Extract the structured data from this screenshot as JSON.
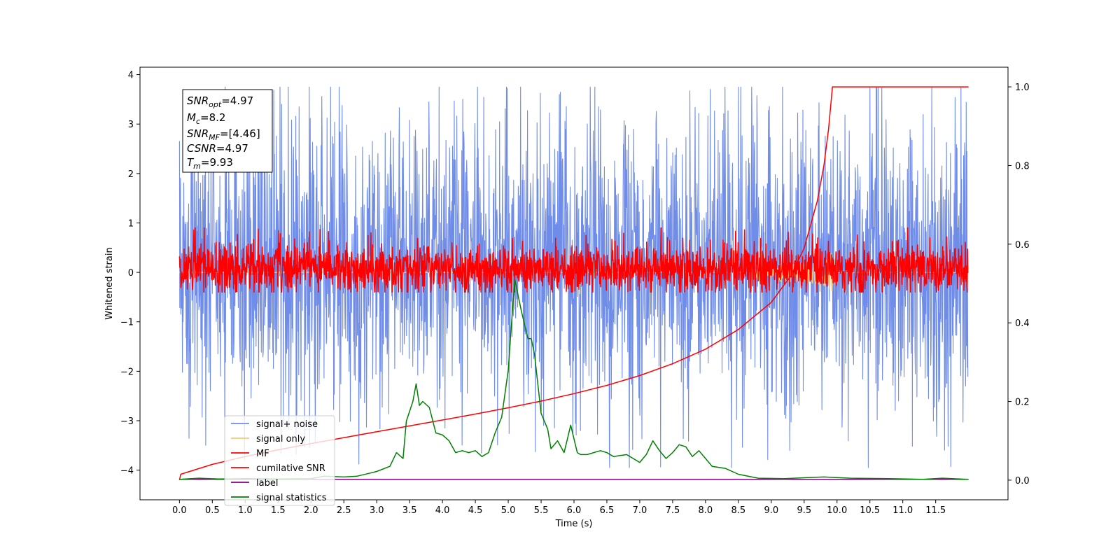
{
  "chart_data": {
    "type": "line",
    "xlabel": "Time (s)",
    "ylabel": "Whitened strain",
    "xlim": [
      -0.6,
      12.6
    ],
    "ylim": [
      -4.6,
      4.15
    ],
    "ylim_right": [
      -0.05,
      1.05
    ],
    "x_ticks": [
      "0.0",
      "0.5",
      "1.0",
      "1.5",
      "2.0",
      "2.5",
      "3.0",
      "3.5",
      "4.0",
      "4.5",
      "5.0",
      "5.5",
      "6.0",
      "6.5",
      "7.0",
      "7.5",
      "8.0",
      "8.5",
      "9.0",
      "9.5",
      "10.0",
      "10.5",
      "11.0",
      "11.5"
    ],
    "y_ticks": [
      "4",
      "3",
      "2",
      "1",
      "0",
      "−1",
      "−2",
      "−3",
      "−4"
    ],
    "y_ticks_right": [
      "1.0",
      "0.8",
      "0.6",
      "0.4",
      "0.2",
      "0.0"
    ],
    "grid": false,
    "legend_position": "lower-left",
    "annotation": {
      "line1_main": "SNR",
      "line1_sub": "opt",
      "line1_rest": "=4.97",
      "line2_main": "M",
      "line2_sub": "c",
      "line2_rest": "=8.2",
      "line3_main": "SNR",
      "line3_sub": "MF",
      "line3_rest": "=[4.46]",
      "line4_main": "CSNR",
      "line4_rest": "=4.97",
      "line5_main": "T",
      "line5_sub": "m",
      "line5_rest": "=9.93"
    },
    "series": [
      {
        "name": "signal+ noise",
        "color": "#6f8ce8",
        "axis": "left",
        "kind": "noise",
        "x_range": [
          0,
          11.99
        ],
        "typical_range": [
          -1.8,
          2.3
        ],
        "extremes": [
          -3.95,
          3.75
        ]
      },
      {
        "name": "signal only",
        "color": "#f5c878",
        "axis": "left",
        "kind": "chirp",
        "x_range": [
          0,
          11.99
        ],
        "merger_time": 9.93,
        "peak_amplitude": 0.45
      },
      {
        "name": "MF",
        "color": "#ff0000",
        "axis": "left",
        "kind": "noise",
        "x_range": [
          0,
          11.99
        ],
        "typical_range": [
          -0.35,
          0.5
        ],
        "extremes": [
          -0.4,
          0.9
        ]
      },
      {
        "name": "cumilative SNR",
        "color": "#ff0000",
        "axis": "right",
        "x": [
          0.0,
          0.02,
          0.5,
          1.0,
          1.5,
          2.0,
          2.5,
          3.0,
          3.5,
          4.0,
          4.5,
          5.0,
          5.5,
          6.0,
          6.5,
          7.0,
          7.5,
          8.0,
          8.5,
          9.0,
          9.3,
          9.5,
          9.7,
          9.8,
          9.87,
          9.93,
          12.0
        ],
        "y": [
          0.0,
          0.015,
          0.04,
          0.06,
          0.077,
          0.093,
          0.108,
          0.123,
          0.138,
          0.153,
          0.168,
          0.184,
          0.201,
          0.22,
          0.241,
          0.266,
          0.296,
          0.333,
          0.383,
          0.452,
          0.52,
          0.59,
          0.71,
          0.8,
          0.89,
          1.0,
          1.0
        ]
      },
      {
        "name": "label",
        "color": "#800080",
        "axis": "right",
        "x": [
          0.0,
          12.0
        ],
        "y": [
          0.002,
          0.002
        ]
      },
      {
        "name": "signal statistics",
        "color": "#008000",
        "axis": "right",
        "x": [
          0.0,
          0.3,
          0.6,
          1.0,
          1.5,
          2.0,
          2.2,
          2.5,
          2.7,
          2.9,
          3.0,
          3.2,
          3.3,
          3.4,
          3.45,
          3.55,
          3.6,
          3.65,
          3.7,
          3.8,
          3.9,
          4.0,
          4.1,
          4.2,
          4.3,
          4.4,
          4.5,
          4.6,
          4.7,
          4.8,
          4.9,
          5.0,
          5.05,
          5.1,
          5.2,
          5.3,
          5.35,
          5.4,
          5.5,
          5.6,
          5.65,
          5.75,
          5.85,
          5.95,
          6.05,
          6.1,
          6.2,
          6.4,
          6.5,
          6.6,
          6.8,
          7.0,
          7.1,
          7.2,
          7.3,
          7.4,
          7.5,
          7.6,
          7.7,
          7.8,
          7.9,
          8.0,
          8.1,
          8.3,
          8.5,
          8.8,
          9.2,
          9.5,
          9.8,
          10.2,
          10.8,
          11.3,
          11.6,
          11.99
        ],
        "y": [
          0.002,
          0.005,
          0.003,
          0.004,
          0.003,
          0.004,
          0.01,
          0.008,
          0.01,
          0.018,
          0.022,
          0.035,
          0.07,
          0.055,
          0.15,
          0.2,
          0.245,
          0.19,
          0.2,
          0.185,
          0.12,
          0.115,
          0.1,
          0.07,
          0.075,
          0.07,
          0.075,
          0.06,
          0.07,
          0.12,
          0.16,
          0.28,
          0.4,
          0.51,
          0.43,
          0.36,
          0.36,
          0.32,
          0.17,
          0.13,
          0.08,
          0.1,
          0.07,
          0.14,
          0.07,
          0.065,
          0.065,
          0.075,
          0.07,
          0.06,
          0.065,
          0.045,
          0.065,
          0.1,
          0.075,
          0.055,
          0.07,
          0.09,
          0.085,
          0.06,
          0.075,
          0.055,
          0.035,
          0.03,
          0.015,
          0.005,
          0.004,
          0.006,
          0.008,
          0.005,
          0.004,
          0.002,
          0.005,
          0.002
        ]
      }
    ]
  }
}
